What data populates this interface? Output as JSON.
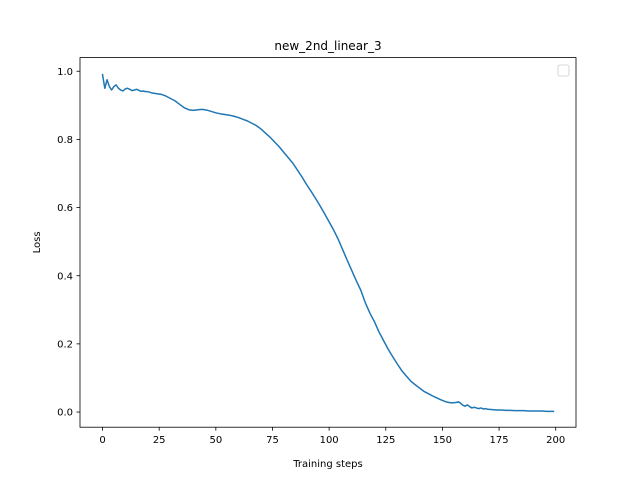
{
  "chart_data": {
    "type": "line",
    "title": "new_2nd_linear_3",
    "xlabel": "Training steps",
    "ylabel": "Loss",
    "xlim": [
      -9.95,
      208.95
    ],
    "ylim": [
      -0.0445,
      1.04
    ],
    "xticks": [
      0,
      25,
      50,
      75,
      100,
      125,
      150,
      175,
      200
    ],
    "yticks": [
      0.0,
      0.2,
      0.4,
      0.6,
      0.8,
      1.0
    ],
    "xtick_labels": [
      "0",
      "25",
      "50",
      "75",
      "100",
      "125",
      "150",
      "175",
      "200"
    ],
    "ytick_labels": [
      "0.0",
      "0.2",
      "0.4",
      "0.6",
      "0.8",
      "1.0"
    ],
    "grid": false,
    "legend": {
      "placement": "top-right",
      "entries": []
    },
    "series": [
      {
        "color": "#1f77b4",
        "x": [
          0,
          1,
          2,
          3,
          4,
          5,
          6,
          7,
          8,
          9,
          10,
          11,
          12,
          13,
          14,
          15,
          16,
          17,
          18,
          19,
          20,
          22,
          24,
          26,
          28,
          30,
          32,
          34,
          36,
          38,
          40,
          42,
          44,
          46,
          48,
          50,
          52,
          54,
          56,
          58,
          60,
          62,
          64,
          66,
          68,
          70,
          72,
          74,
          76,
          78,
          80,
          82,
          84,
          86,
          88,
          90,
          92,
          94,
          96,
          98,
          100,
          102,
          104,
          106,
          108,
          110,
          112,
          114,
          116,
          118,
          120,
          122,
          124,
          126,
          128,
          130,
          132,
          134,
          136,
          138,
          140,
          142,
          144,
          146,
          148,
          150,
          152,
          154,
          156,
          157,
          158,
          159,
          160,
          161,
          162,
          163,
          164,
          165,
          166,
          167,
          168,
          169,
          170,
          172,
          174,
          176,
          178,
          180,
          182,
          184,
          186,
          188,
          190,
          192,
          194,
          196,
          198,
          199
        ],
        "y": [
          0.99,
          0.95,
          0.975,
          0.955,
          0.945,
          0.955,
          0.96,
          0.95,
          0.945,
          0.942,
          0.948,
          0.95,
          0.947,
          0.943,
          0.945,
          0.947,
          0.944,
          0.941,
          0.942,
          0.94,
          0.94,
          0.936,
          0.934,
          0.932,
          0.927,
          0.92,
          0.913,
          0.903,
          0.893,
          0.887,
          0.885,
          0.887,
          0.888,
          0.886,
          0.882,
          0.878,
          0.875,
          0.873,
          0.871,
          0.868,
          0.864,
          0.859,
          0.854,
          0.847,
          0.84,
          0.83,
          0.818,
          0.806,
          0.792,
          0.778,
          0.762,
          0.746,
          0.73,
          0.71,
          0.69,
          0.668,
          0.648,
          0.627,
          0.605,
          0.582,
          0.558,
          0.534,
          0.507,
          0.476,
          0.445,
          0.415,
          0.385,
          0.357,
          0.32,
          0.29,
          0.265,
          0.235,
          0.21,
          0.185,
          0.163,
          0.142,
          0.122,
          0.106,
          0.091,
          0.08,
          0.07,
          0.06,
          0.053,
          0.046,
          0.04,
          0.034,
          0.029,
          0.027,
          0.028,
          0.03,
          0.026,
          0.02,
          0.017,
          0.021,
          0.016,
          0.012,
          0.014,
          0.012,
          0.01,
          0.012,
          0.009,
          0.01,
          0.008,
          0.007,
          0.006,
          0.006,
          0.005,
          0.005,
          0.004,
          0.004,
          0.004,
          0.003,
          0.003,
          0.003,
          0.003,
          0.002,
          0.002,
          0.002
        ]
      }
    ]
  }
}
